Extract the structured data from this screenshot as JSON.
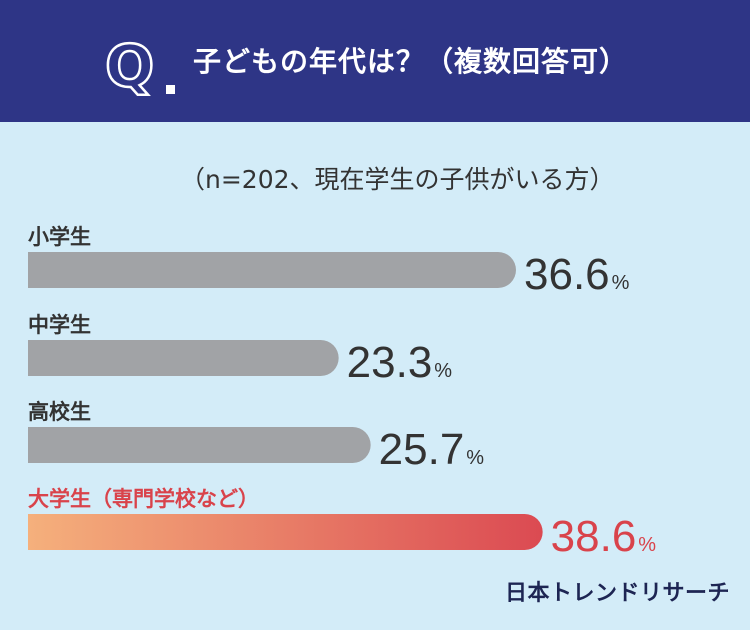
{
  "header": {
    "q_label": "Q",
    "question": "子どもの年代は？（複数回答可）"
  },
  "colors": {
    "header_bg": "#2e3586",
    "background": "#d3ecf8",
    "bar_gray": "#a1a3a6",
    "highlight_start": "#f5b07c",
    "highlight_end": "#db4a52",
    "highlight_text": "#d9434b"
  },
  "chart_data": {
    "type": "bar",
    "orientation": "horizontal",
    "subtitle": "（n=202、現在学生の子供がいる方）",
    "categories": [
      "小学生",
      "中学生",
      "高校生",
      "大学生（専門学校など）"
    ],
    "values": [
      36.6,
      23.3,
      25.7,
      38.6
    ],
    "unit": "%",
    "highlight": "大学生（専門学校など）",
    "xlim": [
      0,
      41.4
    ],
    "grid": false
  },
  "brand": "日本トレンドリサーチ"
}
